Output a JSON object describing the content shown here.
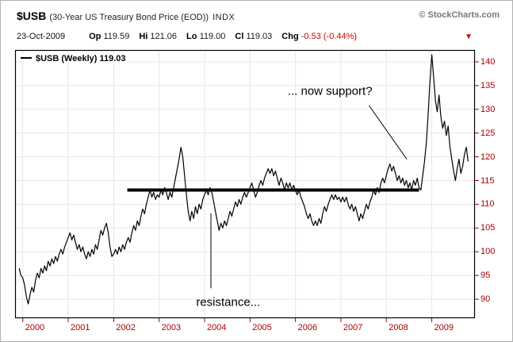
{
  "header": {
    "symbol": "$USB",
    "description": "(30-Year US Treasury Bond Price (EOD))",
    "exchange": "INDX",
    "copyright": "© StockCharts.com",
    "date": "23-Oct-2009",
    "quote": {
      "op_label": "Op",
      "op": "119.59",
      "hi_label": "Hi",
      "hi": "121.06",
      "lo_label": "Lo",
      "lo": "119.00",
      "cl_label": "Cl",
      "cl": "119.03",
      "chg_label": "Chg",
      "chg": "-0.53 (-0.44%)"
    },
    "direction_icon": "▼"
  },
  "legend": {
    "label": "$USB (Weekly) 119.03"
  },
  "colors": {
    "price_line": "#000000",
    "grid": "#e7e7e7",
    "axis_text": "#aa0000",
    "border": "#000000",
    "support_line": "#000000",
    "annotation_line": "#000000",
    "change_negative": "#cc0000"
  },
  "chart_data": {
    "type": "line",
    "title": "$USB (Weekly) 119.03",
    "xlabel": "",
    "ylabel": "",
    "x_range": [
      1999.83,
      2009.95
    ],
    "y_range": [
      86,
      142.5
    ],
    "x_ticks": [
      2000,
      2001,
      2002,
      2003,
      2004,
      2005,
      2006,
      2007,
      2008,
      2009
    ],
    "y_ticks": [
      90,
      95,
      100,
      105,
      110,
      115,
      120,
      125,
      130,
      135,
      140
    ],
    "grid": true,
    "legend_position": "top-left",
    "support_line": {
      "y": 113.0,
      "x1": 2002.3,
      "x2": 2008.72
    },
    "annotations": [
      {
        "name": "now-support",
        "text": "... now support?",
        "text_x": 2006.76,
        "text_y": 133.8,
        "line": {
          "x1": 2007.62,
          "y1": 130.8,
          "x2": 2008.45,
          "y2": 119.5
        }
      },
      {
        "name": "resistance",
        "text": "resistance...",
        "text_x": 2004.52,
        "text_y": 89.3,
        "line": {
          "x1": 2004.14,
          "y1": 108.1,
          "x2": 2004.14,
          "y2": 92.3
        }
      }
    ],
    "series": [
      {
        "name": "$USB Weekly Close",
        "x_start": 1999.92,
        "x_step": 0.04,
        "values": [
          96.5,
          95.0,
          94.5,
          93.0,
          90.5,
          89.0,
          91.0,
          92.5,
          91.5,
          94.0,
          95.5,
          94.5,
          96.5,
          95.5,
          97.0,
          96.0,
          98.0,
          97.0,
          98.5,
          97.5,
          99.0,
          98.0,
          99.5,
          100.5,
          99.5,
          101.0,
          102.0,
          103.0,
          104.0,
          102.5,
          103.5,
          102.0,
          100.5,
          101.5,
          100.0,
          101.0,
          99.5,
          98.5,
          100.0,
          99.0,
          100.5,
          99.5,
          101.5,
          100.5,
          102.5,
          104.5,
          103.5,
          105.0,
          106.0,
          104.0,
          101.0,
          99.0,
          99.5,
          100.5,
          99.5,
          101.0,
          100.0,
          101.5,
          100.5,
          102.0,
          103.0,
          102.0,
          104.0,
          105.5,
          104.5,
          106.5,
          105.5,
          107.5,
          109.0,
          108.0,
          110.0,
          111.5,
          113.0,
          111.5,
          112.5,
          111.0,
          112.0,
          111.5,
          113.0,
          112.0,
          113.5,
          112.5,
          111.0,
          112.5,
          111.5,
          113.5,
          115.5,
          117.5,
          119.5,
          122.0,
          120.0,
          116.0,
          112.0,
          108.5,
          106.5,
          108.5,
          107.0,
          109.5,
          108.0,
          110.0,
          109.0,
          111.0,
          112.0,
          113.0,
          112.0,
          113.5,
          112.5,
          110.5,
          108.5,
          106.5,
          104.5,
          106.0,
          105.0,
          106.5,
          105.5,
          107.0,
          108.5,
          107.5,
          109.0,
          110.5,
          109.5,
          111.0,
          110.0,
          111.5,
          112.5,
          111.5,
          112.5,
          113.5,
          114.5,
          113.0,
          111.5,
          112.5,
          114.0,
          115.0,
          114.0,
          115.5,
          116.5,
          117.5,
          116.5,
          117.5,
          116.0,
          117.0,
          115.5,
          114.0,
          115.5,
          114.5,
          113.0,
          114.5,
          113.5,
          114.5,
          113.0,
          114.0,
          113.0,
          112.0,
          113.0,
          111.5,
          110.5,
          109.5,
          108.0,
          107.0,
          108.0,
          106.5,
          105.5,
          106.5,
          105.5,
          107.0,
          106.0,
          108.0,
          109.5,
          108.5,
          110.0,
          111.0,
          112.0,
          111.0,
          112.0,
          111.0,
          111.5,
          110.5,
          111.5,
          110.5,
          111.5,
          110.0,
          109.0,
          110.0,
          108.5,
          109.5,
          108.0,
          106.5,
          108.0,
          107.0,
          108.5,
          110.0,
          109.0,
          110.5,
          111.5,
          113.0,
          112.0,
          113.5,
          112.5,
          114.5,
          115.5,
          114.5,
          116.0,
          117.5,
          118.5,
          117.0,
          118.0,
          116.5,
          115.0,
          116.0,
          114.5,
          115.5,
          114.0,
          115.0,
          113.5,
          114.5,
          113.0,
          115.0,
          114.0,
          115.5,
          113.5,
          113.0,
          116.0,
          119.0,
          123.0,
          129.0,
          136.0,
          141.5,
          137.0,
          132.0,
          129.5,
          133.0,
          128.5,
          126.0,
          127.5,
          124.5,
          126.5,
          122.0,
          119.5,
          117.0,
          115.0,
          117.5,
          119.5,
          116.5,
          118.0,
          120.5,
          122.0,
          119.03
        ]
      }
    ]
  }
}
